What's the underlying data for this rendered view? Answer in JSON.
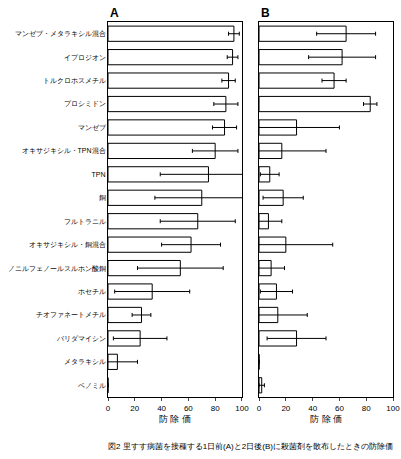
{
  "chart_data": {
    "type": "bar",
    "orientation": "horizontal",
    "title": "図2 里すす病菌を接種する1日前(A)と2日後(B)に殺菌剤を散布したときの防除価",
    "x_label": "防 除 価",
    "color": "#ffffff",
    "xlim": [
      0,
      100
    ],
    "xticks": [
      0,
      20,
      40,
      60,
      80,
      100
    ],
    "tick_labels": "y",
    "grid": false,
    "categories": [
      "マンゼブ・メタラキシル混合",
      "イプロジオン",
      "トルクロホスメチル",
      "プロシミドン",
      "マンゼブ",
      "オキサジキシル・TPN混合",
      "TPN",
      "銅",
      "フルトラニル",
      "オキサジキシル・銅混合",
      "ノニルフェノールスルホン酸銅",
      "ホセチル",
      "チオファネートメチル",
      "バリダマイシン",
      "メタラキシル",
      "ベノミル"
    ],
    "panels": [
      {
        "title": "A",
        "values": [
          94,
          93,
          90,
          88,
          87,
          80,
          75,
          70,
          67,
          62,
          54,
          33,
          25,
          24,
          7,
          0
        ],
        "errors": [
          4,
          4,
          5,
          9,
          9,
          17,
          36,
          35,
          28,
          22,
          32,
          28,
          7,
          20,
          15,
          0
        ]
      },
      {
        "title": "B",
        "values": [
          65,
          62,
          56,
          83,
          28,
          17,
          8,
          18,
          7,
          20,
          9,
          13,
          14,
          28,
          0,
          2
        ],
        "errors": [
          22,
          25,
          9,
          5,
          32,
          33,
          7,
          15,
          10,
          35,
          10,
          12,
          22,
          22,
          0,
          2
        ]
      }
    ]
  }
}
